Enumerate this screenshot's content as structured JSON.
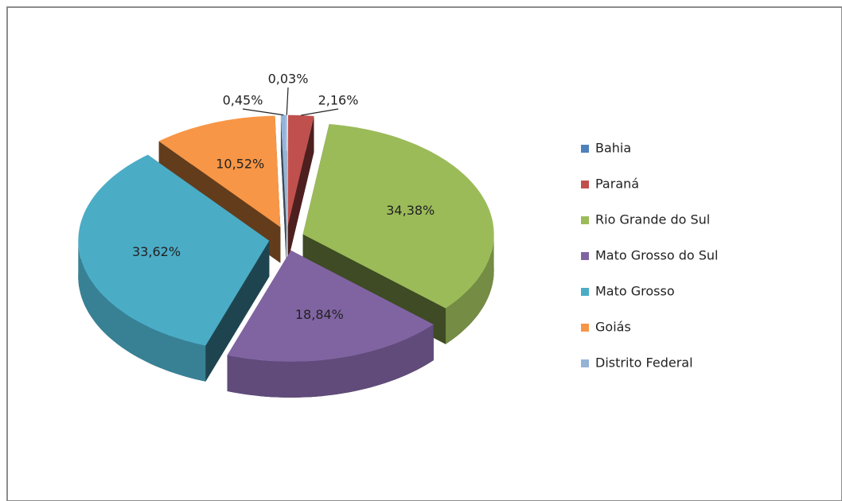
{
  "chart_data": {
    "type": "pie3d",
    "categories": [
      "Bahia",
      "Paraná",
      "Rio Grande do Sul",
      "Mato Grosso do Sul",
      "Mato Grosso",
      "Goiás",
      "Distrito Federal"
    ],
    "values": [
      0.03,
      2.16,
      34.38,
      18.84,
      33.62,
      10.52,
      0.45
    ],
    "value_labels": [
      "0,03%",
      "2,16%",
      "34,38%",
      "18,84%",
      "33,62%",
      "10,52%",
      "0,45%"
    ],
    "colors": [
      "#4f81bd",
      "#c0504d",
      "#9bbb59",
      "#8064a2",
      "#4bacc6",
      "#f79646",
      "#95b3d7"
    ],
    "legend": "right"
  }
}
